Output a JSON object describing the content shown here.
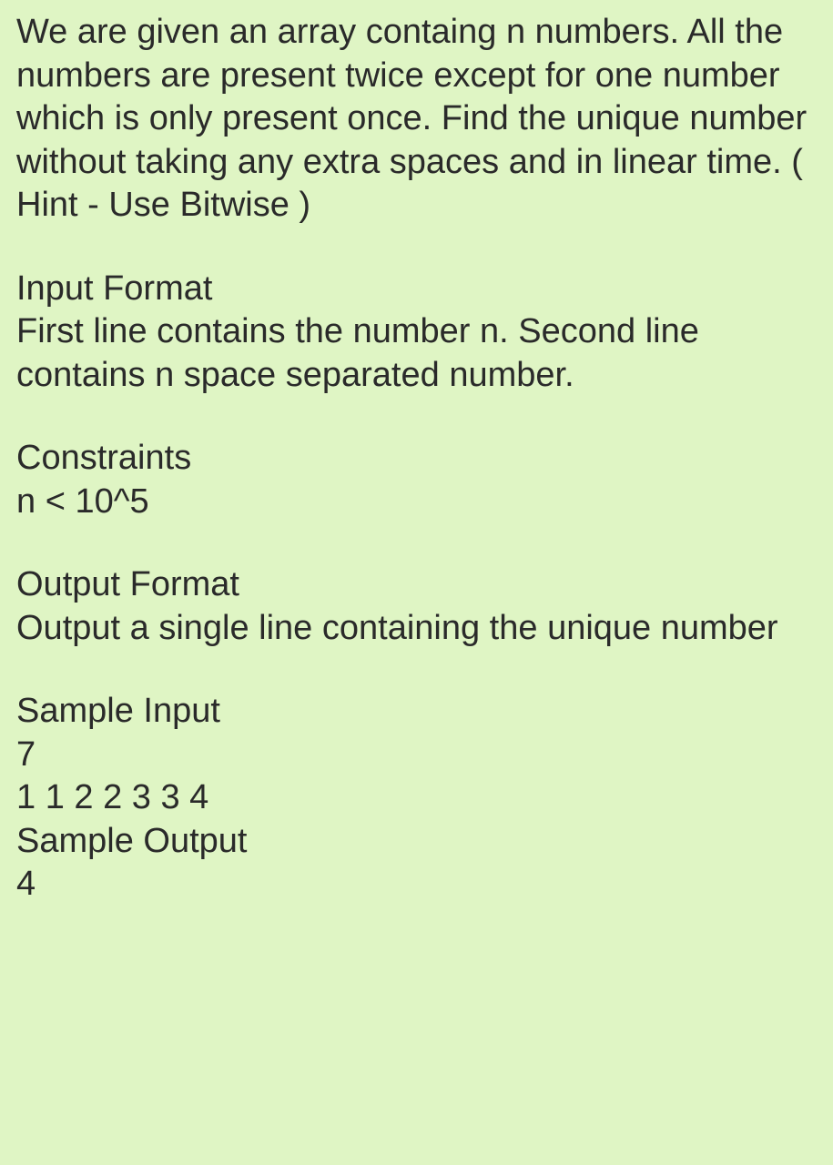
{
  "problem": {
    "description": "We are given an array containg n numbers. All the numbers are present twice except for one number which is only present once. Find the unique number without taking any extra spaces and in linear time. ( Hint - Use Bitwise )"
  },
  "inputFormat": {
    "heading": "Input Format",
    "text": "First line contains the number n. Second line contains n space separated number."
  },
  "constraints": {
    "heading": "Constraints",
    "text": "n < 10^5"
  },
  "outputFormat": {
    "heading": "Output Format",
    "text": "Output a single line containing the unique number"
  },
  "sampleInput": {
    "heading": "Sample Input",
    "line1": "7",
    "line2": "1 1 2 2 3 3 4"
  },
  "sampleOutput": {
    "heading": "Sample Output",
    "value": "4"
  }
}
